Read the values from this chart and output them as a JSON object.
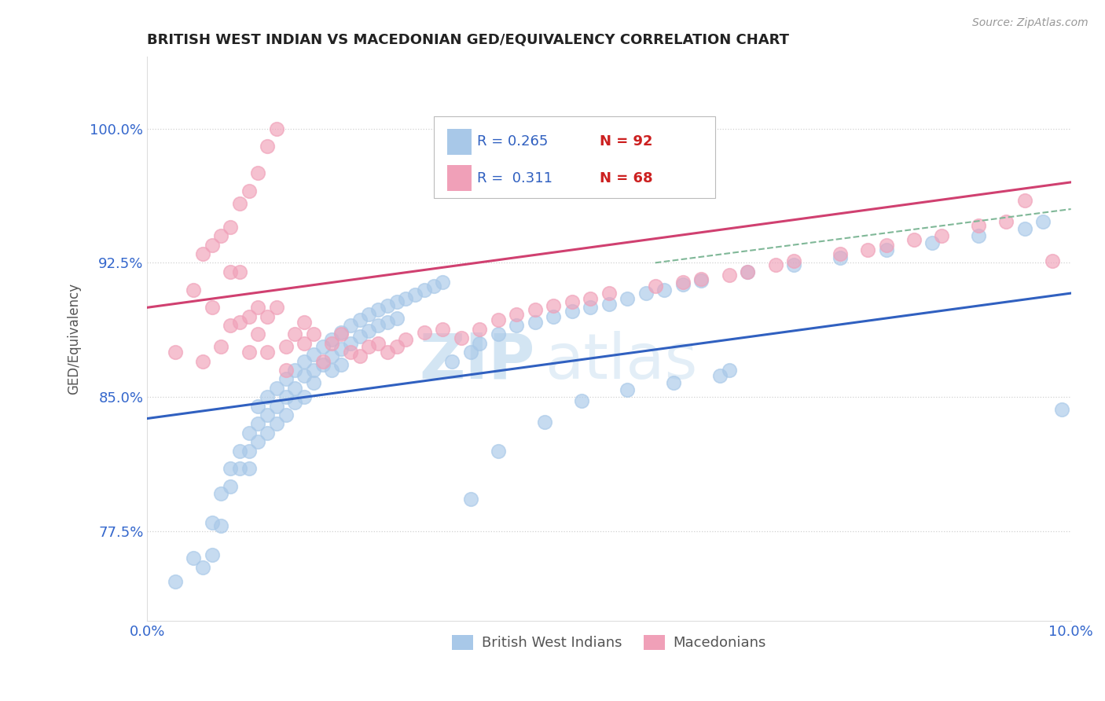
{
  "title": "BRITISH WEST INDIAN VS MACEDONIAN GED/EQUIVALENCY CORRELATION CHART",
  "source": "Source: ZipAtlas.com",
  "ylabel": "GED/Equivalency",
  "xlim": [
    0.0,
    0.1
  ],
  "ylim": [
    0.725,
    1.04
  ],
  "xtick_labels": [
    "0.0%",
    "10.0%"
  ],
  "ytick_labels": [
    "77.5%",
    "85.0%",
    "92.5%",
    "100.0%"
  ],
  "ytick_vals": [
    0.775,
    0.85,
    0.925,
    1.0
  ],
  "blue_R": "0.265",
  "blue_N": "92",
  "pink_R": "0.311",
  "pink_N": "68",
  "blue_color": "#a8c8e8",
  "pink_color": "#f0a0b8",
  "blue_line_color": "#3060c0",
  "pink_line_color": "#d04070",
  "dashed_line_color": "#80b898",
  "legend_R_color": "#3060c0",
  "legend_N_color": "#cc2020",
  "watermark_color": "#c8dff0",
  "blue_line_x": [
    0.0,
    0.1
  ],
  "blue_line_y": [
    0.838,
    0.908
  ],
  "pink_line_x": [
    0.0,
    0.1
  ],
  "pink_line_y": [
    0.9,
    0.97
  ],
  "dashed_line_x": [
    0.055,
    0.1
  ],
  "dashed_line_y": [
    0.925,
    0.955
  ],
  "blue_scatter_x": [
    0.003,
    0.005,
    0.006,
    0.007,
    0.007,
    0.008,
    0.008,
    0.009,
    0.009,
    0.01,
    0.01,
    0.011,
    0.011,
    0.011,
    0.012,
    0.012,
    0.012,
    0.013,
    0.013,
    0.013,
    0.014,
    0.014,
    0.014,
    0.015,
    0.015,
    0.015,
    0.016,
    0.016,
    0.016,
    0.017,
    0.017,
    0.017,
    0.018,
    0.018,
    0.018,
    0.019,
    0.019,
    0.02,
    0.02,
    0.02,
    0.021,
    0.021,
    0.021,
    0.022,
    0.022,
    0.023,
    0.023,
    0.024,
    0.024,
    0.025,
    0.025,
    0.026,
    0.026,
    0.027,
    0.027,
    0.028,
    0.029,
    0.03,
    0.031,
    0.032,
    0.033,
    0.035,
    0.036,
    0.038,
    0.04,
    0.042,
    0.044,
    0.046,
    0.048,
    0.05,
    0.052,
    0.054,
    0.056,
    0.058,
    0.06,
    0.065,
    0.07,
    0.075,
    0.08,
    0.085,
    0.09,
    0.095,
    0.097,
    0.099,
    0.035,
    0.038,
    0.043,
    0.047,
    0.052,
    0.057,
    0.062,
    0.063
  ],
  "blue_scatter_y": [
    0.747,
    0.76,
    0.755,
    0.78,
    0.762,
    0.796,
    0.778,
    0.81,
    0.8,
    0.82,
    0.81,
    0.83,
    0.82,
    0.81,
    0.845,
    0.835,
    0.825,
    0.85,
    0.84,
    0.83,
    0.855,
    0.845,
    0.835,
    0.86,
    0.85,
    0.84,
    0.865,
    0.855,
    0.847,
    0.87,
    0.862,
    0.85,
    0.874,
    0.865,
    0.858,
    0.878,
    0.868,
    0.882,
    0.873,
    0.865,
    0.886,
    0.877,
    0.868,
    0.89,
    0.88,
    0.893,
    0.884,
    0.896,
    0.887,
    0.899,
    0.89,
    0.901,
    0.892,
    0.903,
    0.894,
    0.905,
    0.907,
    0.91,
    0.912,
    0.914,
    0.87,
    0.875,
    0.88,
    0.885,
    0.89,
    0.892,
    0.895,
    0.898,
    0.9,
    0.902,
    0.905,
    0.908,
    0.91,
    0.913,
    0.915,
    0.92,
    0.924,
    0.928,
    0.932,
    0.936,
    0.94,
    0.944,
    0.948,
    0.843,
    0.793,
    0.82,
    0.836,
    0.848,
    0.854,
    0.858,
    0.862,
    0.865
  ],
  "pink_scatter_x": [
    0.003,
    0.005,
    0.006,
    0.007,
    0.008,
    0.009,
    0.009,
    0.01,
    0.01,
    0.011,
    0.011,
    0.012,
    0.012,
    0.013,
    0.013,
    0.014,
    0.015,
    0.015,
    0.016,
    0.017,
    0.017,
    0.018,
    0.019,
    0.02,
    0.021,
    0.022,
    0.023,
    0.024,
    0.025,
    0.026,
    0.027,
    0.028,
    0.03,
    0.032,
    0.034,
    0.036,
    0.038,
    0.04,
    0.042,
    0.044,
    0.046,
    0.048,
    0.05,
    0.055,
    0.058,
    0.06,
    0.063,
    0.065,
    0.068,
    0.07,
    0.075,
    0.078,
    0.08,
    0.083,
    0.086,
    0.09,
    0.093,
    0.095,
    0.098,
    0.006,
    0.007,
    0.008,
    0.009,
    0.01,
    0.011,
    0.012,
    0.013,
    0.014
  ],
  "pink_scatter_y": [
    0.875,
    0.91,
    0.87,
    0.9,
    0.878,
    0.92,
    0.89,
    0.92,
    0.892,
    0.895,
    0.875,
    0.9,
    0.885,
    0.895,
    0.875,
    0.9,
    0.878,
    0.865,
    0.885,
    0.88,
    0.892,
    0.885,
    0.87,
    0.88,
    0.885,
    0.875,
    0.873,
    0.878,
    0.88,
    0.875,
    0.878,
    0.882,
    0.886,
    0.888,
    0.883,
    0.888,
    0.893,
    0.896,
    0.899,
    0.901,
    0.903,
    0.905,
    0.908,
    0.912,
    0.914,
    0.916,
    0.918,
    0.92,
    0.924,
    0.926,
    0.93,
    0.932,
    0.935,
    0.938,
    0.94,
    0.946,
    0.948,
    0.96,
    0.926,
    0.93,
    0.935,
    0.94,
    0.945,
    0.958,
    0.965,
    0.975,
    0.99,
    1.0
  ]
}
